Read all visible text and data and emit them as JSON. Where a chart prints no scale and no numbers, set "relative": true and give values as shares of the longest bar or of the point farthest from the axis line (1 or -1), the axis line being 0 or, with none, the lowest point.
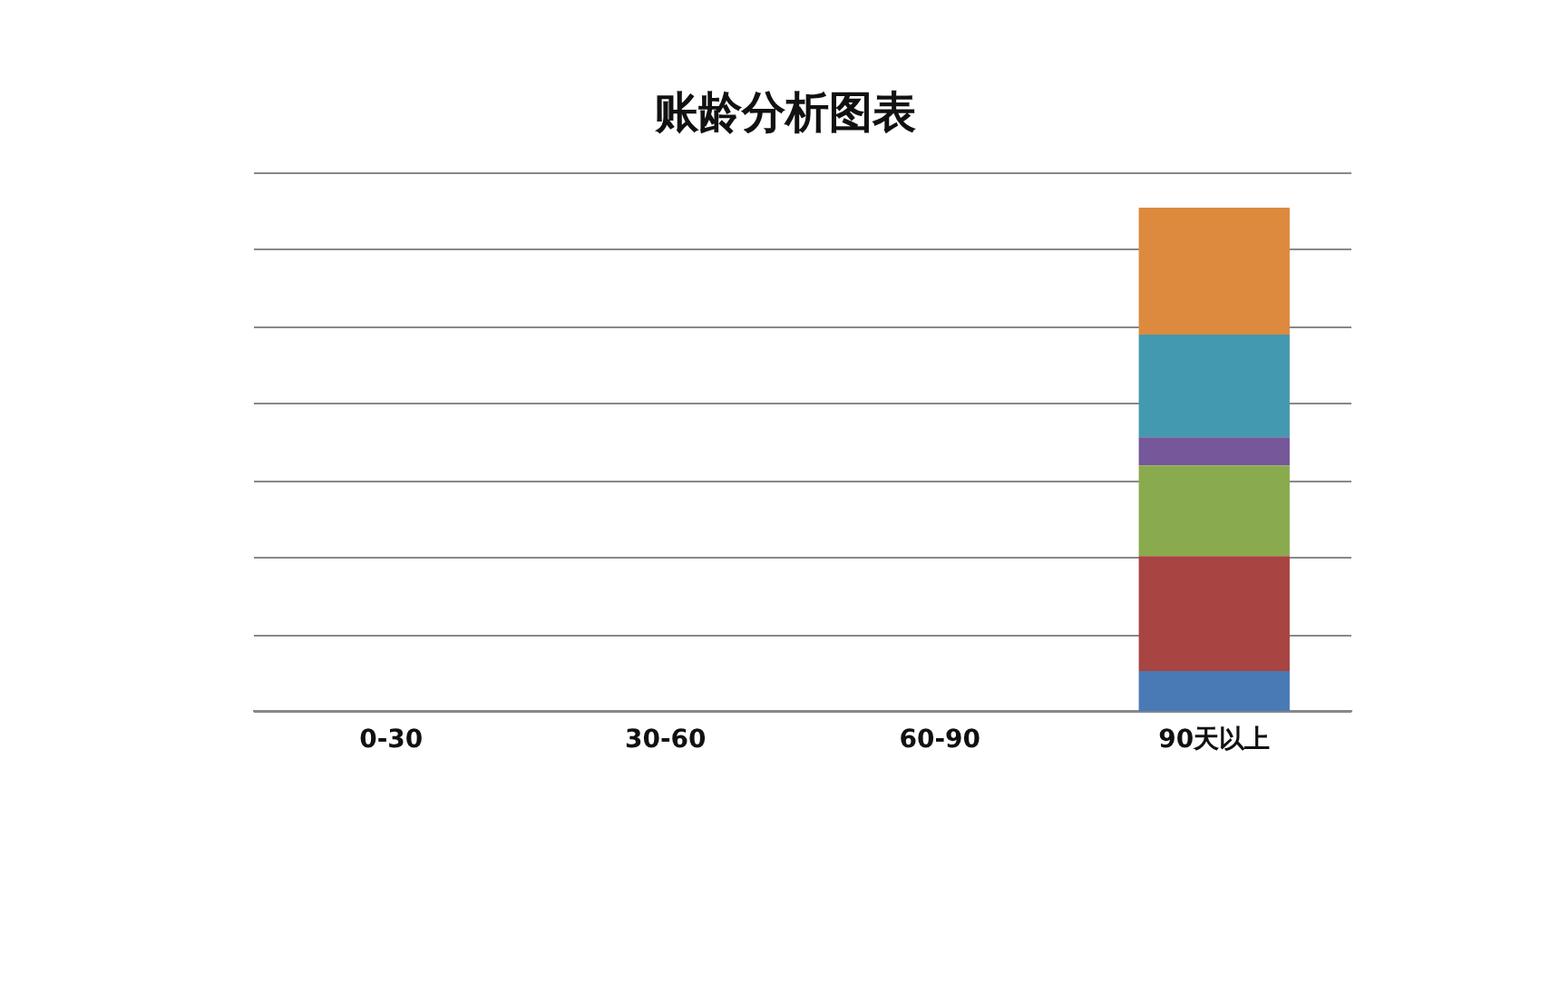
{
  "chart_data": {
    "type": "bar",
    "title": "账龄分析图表",
    "categories": [
      "0-30",
      "30-60",
      "60-90",
      "90天以上"
    ],
    "stacked": true,
    "relative": true,
    "grid": "y",
    "series": [
      {
        "color": "#4a7ab5",
        "values": [
          0,
          0,
          0,
          0.08
        ]
      },
      {
        "color": "#a84442",
        "values": [
          0,
          0,
          0,
          0.228
        ]
      },
      {
        "color": "#8aaa4e",
        "values": [
          0,
          0,
          0,
          0.18
        ]
      },
      {
        "color": "#75579a",
        "values": [
          0,
          0,
          0,
          0.056
        ]
      },
      {
        "color": "#4399b0",
        "values": [
          0,
          0,
          0,
          0.204
        ]
      },
      {
        "color": "#dd8a3e",
        "values": [
          0,
          0,
          0,
          0.252
        ]
      }
    ]
  }
}
